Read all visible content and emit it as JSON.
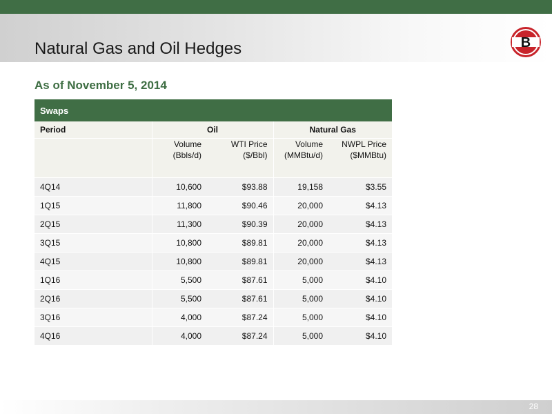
{
  "slide": {
    "title": "Natural Gas and Oil Hedges",
    "subtitle": "As of November 5, 2014",
    "page_number": "28",
    "logo_letter": "B"
  },
  "colors": {
    "accent_green": "#406e45",
    "logo_red": "#c8242b"
  },
  "table": {
    "section_label": "Swaps",
    "period_header": "Period",
    "oil_header": "Oil",
    "gas_header": "Natural Gas",
    "units": {
      "oil_volume_line1": "Volume",
      "oil_volume_line2": "(Bbls/d)",
      "oil_price_line1": "WTI Price",
      "oil_price_line2": "($/Bbl)",
      "gas_volume_line1": "Volume",
      "gas_volume_line2": "(MMBtu/d)",
      "gas_price_line1": "NWPL Price",
      "gas_price_line2": "($MMBtu)"
    },
    "rows": [
      {
        "period": "4Q14",
        "oil_volume": "10,600",
        "wti_price": "$93.88",
        "gas_volume": "19,158",
        "nwpl_price": "$3.55"
      },
      {
        "period": "1Q15",
        "oil_volume": "11,800",
        "wti_price": "$90.46",
        "gas_volume": "20,000",
        "nwpl_price": "$4.13"
      },
      {
        "period": "2Q15",
        "oil_volume": "11,300",
        "wti_price": "$90.39",
        "gas_volume": "20,000",
        "nwpl_price": "$4.13"
      },
      {
        "period": "3Q15",
        "oil_volume": "10,800",
        "wti_price": "$89.81",
        "gas_volume": "20,000",
        "nwpl_price": "$4.13"
      },
      {
        "period": "4Q15",
        "oil_volume": "10,800",
        "wti_price": "$89.81",
        "gas_volume": "20,000",
        "nwpl_price": "$4.13"
      },
      {
        "period": "1Q16",
        "oil_volume": "5,500",
        "wti_price": "$87.61",
        "gas_volume": "5,000",
        "nwpl_price": "$4.10"
      },
      {
        "period": "2Q16",
        "oil_volume": "5,500",
        "wti_price": "$87.61",
        "gas_volume": "5,000",
        "nwpl_price": "$4.10"
      },
      {
        "period": "3Q16",
        "oil_volume": "4,000",
        "wti_price": "$87.24",
        "gas_volume": "5,000",
        "nwpl_price": "$4.10"
      },
      {
        "period": "4Q16",
        "oil_volume": "4,000",
        "wti_price": "$87.24",
        "gas_volume": "5,000",
        "nwpl_price": "$4.10"
      }
    ]
  }
}
